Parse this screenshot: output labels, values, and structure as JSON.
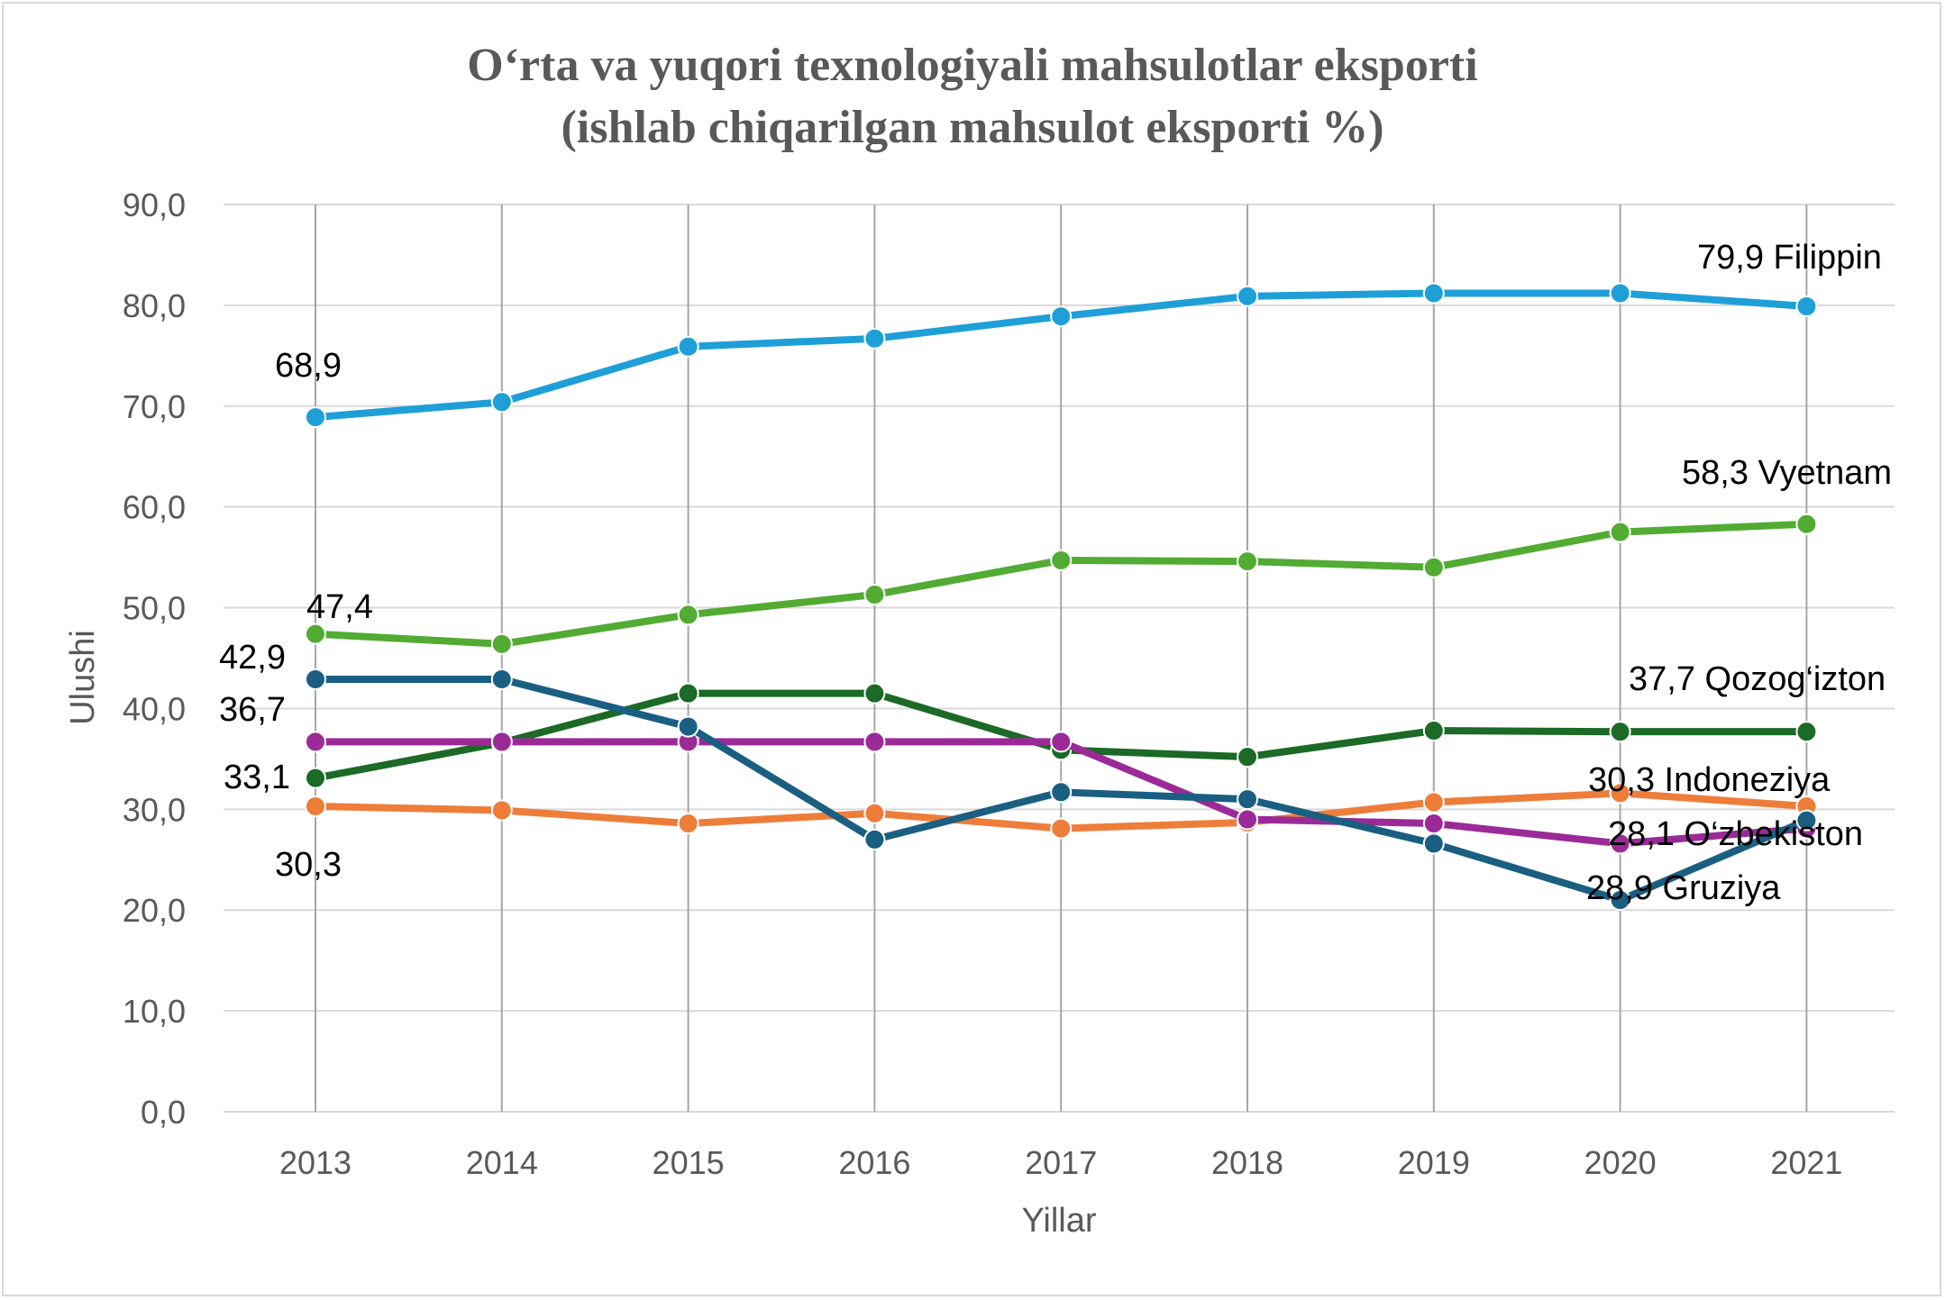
{
  "chart_data": {
    "type": "line",
    "title": [
      "O‘rta va yuqori texnologiyali mahsulotlar eksporti",
      "(ishlab chiqarilgan mahsulot eksporti %)"
    ],
    "xlabel": "Yillar",
    "ylabel": "Ulushi",
    "ylim": [
      0,
      90
    ],
    "yticks": [
      "0,0",
      "10,0",
      "20,0",
      "30,0",
      "40,0",
      "50,0",
      "60,0",
      "70,0",
      "80,0",
      "90,0"
    ],
    "categories": [
      "2013",
      "2014",
      "2015",
      "2016",
      "2017",
      "2018",
      "2019",
      "2020",
      "2021"
    ],
    "grid": true,
    "legend": "none",
    "series": [
      {
        "name": "Filippin",
        "color": "#1f9fd8",
        "values": [
          68.9,
          70.4,
          75.9,
          76.7,
          78.9,
          80.9,
          81.2,
          81.2,
          79.9
        ]
      },
      {
        "name": "Vyetnam",
        "color": "#52ab32",
        "values": [
          47.4,
          46.4,
          49.3,
          51.3,
          54.7,
          54.6,
          54.0,
          57.5,
          58.3
        ]
      },
      {
        "name": "Qozog‘izton",
        "color": "#1b6a25",
        "values": [
          33.1,
          36.6,
          41.5,
          41.5,
          35.9,
          35.2,
          37.8,
          37.7,
          37.7
        ]
      },
      {
        "name": "Indoneziya",
        "color": "#ee7d3a",
        "values": [
          30.3,
          29.9,
          28.6,
          29.6,
          28.1,
          28.7,
          30.7,
          31.6,
          30.3
        ]
      },
      {
        "name": "O‘zbekiston",
        "color": "#9b2a98",
        "values": [
          36.7,
          36.7,
          36.7,
          36.7,
          36.7,
          29.0,
          28.6,
          26.6,
          28.1
        ]
      },
      {
        "name": "Gruziya",
        "color": "#1a5f82",
        "values": [
          42.9,
          42.9,
          38.2,
          27.0,
          31.7,
          31.0,
          26.6,
          21.0,
          28.9
        ]
      }
    ],
    "annotations": [
      {
        "text": "68,9"
      },
      {
        "text": "47,4"
      },
      {
        "text": "42,9"
      },
      {
        "text": "36,7"
      },
      {
        "text": "33,1"
      },
      {
        "text": "30,3"
      },
      {
        "text": "79,9 Filippin"
      },
      {
        "text": "58,3 Vyetnam"
      },
      {
        "text": "37,7 Qozog‘izton"
      },
      {
        "text": "30,3 Indoneziya"
      },
      {
        "text": "28,1 O‘zbekiston"
      },
      {
        "text": "28,9 Gruziya"
      }
    ]
  }
}
